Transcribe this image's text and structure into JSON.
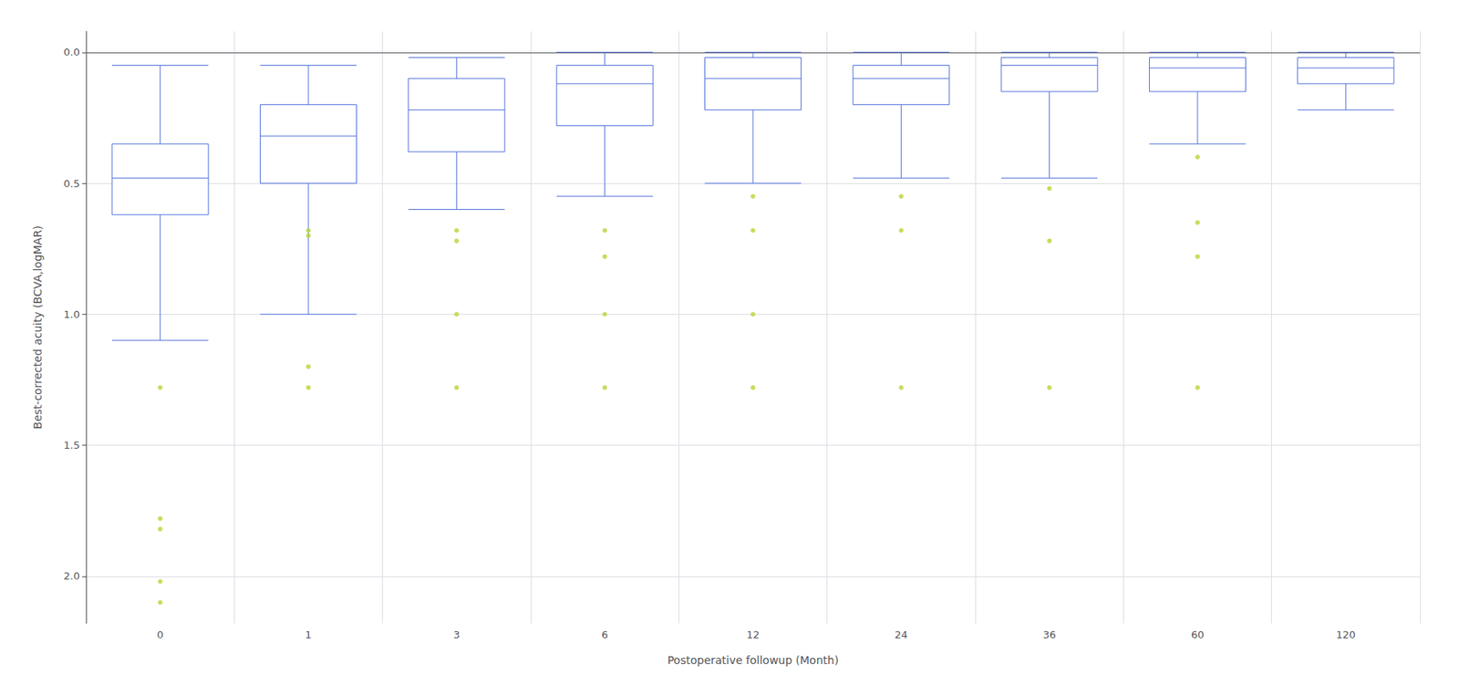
{
  "chart_data": {
    "type": "boxplot",
    "xlabel": "Postoperative followup (Month)",
    "ylabel": "Best-corrected acuity (BCVA,logMAR)",
    "categories": [
      "0",
      "1",
      "3",
      "6",
      "12",
      "24",
      "36",
      "60",
      "120"
    ],
    "boxes": [
      {
        "q1": 0.62,
        "median": 0.48,
        "q3": 0.35,
        "whisker_low": 1.1,
        "whisker_high": 0.05,
        "outliers": [
          1.28,
          1.78,
          1.82,
          2.02,
          2.1
        ]
      },
      {
        "q1": 0.5,
        "median": 0.32,
        "q3": 0.2,
        "whisker_low": 1.0,
        "whisker_high": 0.05,
        "outliers": [
          1.2,
          1.28,
          0.68,
          0.7
        ]
      },
      {
        "q1": 0.38,
        "median": 0.22,
        "q3": 0.1,
        "whisker_low": 0.6,
        "whisker_high": 0.02,
        "outliers": [
          0.68,
          0.72,
          1.0,
          1.28
        ]
      },
      {
        "q1": 0.28,
        "median": 0.12,
        "q3": 0.05,
        "whisker_low": 0.55,
        "whisker_high": 0.0,
        "outliers": [
          0.68,
          0.78,
          1.0,
          1.28
        ]
      },
      {
        "q1": 0.22,
        "median": 0.1,
        "q3": 0.02,
        "whisker_low": 0.5,
        "whisker_high": 0.0,
        "outliers": [
          0.55,
          0.68,
          1.0,
          1.28
        ]
      },
      {
        "q1": 0.2,
        "median": 0.1,
        "q3": 0.05,
        "whisker_low": 0.48,
        "whisker_high": 0.0,
        "outliers": [
          0.55,
          0.68,
          1.28
        ]
      },
      {
        "q1": 0.15,
        "median": 0.05,
        "q3": 0.02,
        "whisker_low": 0.48,
        "whisker_high": 0.0,
        "outliers": [
          0.52,
          0.72,
          1.28
        ]
      },
      {
        "q1": 0.15,
        "median": 0.06,
        "q3": 0.02,
        "whisker_low": 0.35,
        "whisker_high": 0.0,
        "outliers": [
          0.4,
          0.65,
          0.78,
          1.28
        ]
      },
      {
        "q1": 0.12,
        "median": 0.06,
        "q3": 0.02,
        "whisker_low": 0.22,
        "whisker_high": 0.0,
        "outliers": []
      }
    ],
    "ylim": [
      2.18,
      -0.08
    ],
    "yticks": [
      {
        "value": 0.0,
        "label": "0.0"
      },
      {
        "value": 0.5,
        "label": "0.5"
      },
      {
        "value": 1.0,
        "label": "1.0"
      },
      {
        "value": 1.5,
        "label": "1.5"
      },
      {
        "value": 2.0,
        "label": "2.0"
      }
    ],
    "grid": true
  }
}
